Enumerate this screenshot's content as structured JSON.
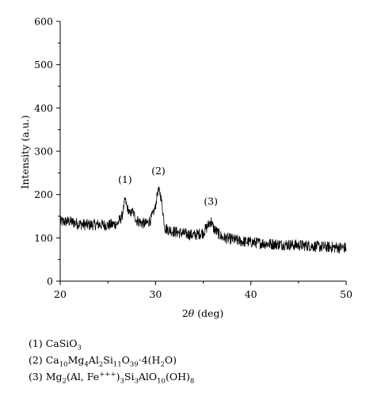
{
  "chart_data": {
    "type": "line",
    "title": "",
    "xlabel": "2θ (deg)",
    "ylabel": "Intensity (a.u.)",
    "xlim": [
      20,
      50
    ],
    "ylim": [
      0,
      600
    ],
    "x_ticks": [
      20,
      30,
      40,
      50
    ],
    "y_ticks": [
      0,
      100,
      200,
      300,
      400,
      500,
      600
    ],
    "grid": false,
    "series": [
      {
        "x": [
          20,
          21,
          22,
          23,
          24,
          25,
          26,
          26.5,
          26.8,
          27.0,
          27.3,
          27.6,
          28,
          28.5,
          29,
          29.5,
          30.0,
          30.2,
          30.4,
          30.6,
          30.8,
          31,
          31.5,
          32,
          33,
          34,
          35,
          35.5,
          35.8,
          36.1,
          36.5,
          37,
          38,
          39,
          40,
          41,
          42,
          43,
          44,
          45,
          46,
          47,
          48,
          49,
          50
        ],
        "y": [
          137,
          138,
          132,
          130,
          131,
          129,
          133,
          150,
          190,
          172,
          155,
          162,
          141,
          135,
          132,
          142,
          172,
          205,
          210,
          190,
          155,
          122,
          118,
          114,
          110,
          106,
          112,
          128,
          140,
          122,
          112,
          101,
          97,
          92,
          90,
          88,
          86,
          85,
          84,
          83,
          82,
          80,
          79,
          78,
          77
        ]
      }
    ],
    "annotations": [
      {
        "label": "(1)",
        "x": 26.8,
        "y": 190
      },
      {
        "label": "(2)",
        "x": 30.3,
        "y": 210
      },
      {
        "label": "(3)",
        "x": 35.8,
        "y": 140
      }
    ]
  },
  "legend": [
    {
      "num": "(1)",
      "html": "CaSiO<sub>3</sub>"
    },
    {
      "num": "(2)",
      "html": "Ca<sub>10</sub>Mg<sub>4</sub>Al<sub>2</sub>Si<sub>11</sub>O<sub>39</sub>·4(H<sub>2</sub>O)"
    },
    {
      "num": "(3)",
      "html": "Mg<sub>2</sub>(Al, Fe<sup>+++</sup>)<sub>3</sub>Si<sub>3</sub>AlO<sub>10</sub>(OH)<sub>8</sub>"
    }
  ]
}
